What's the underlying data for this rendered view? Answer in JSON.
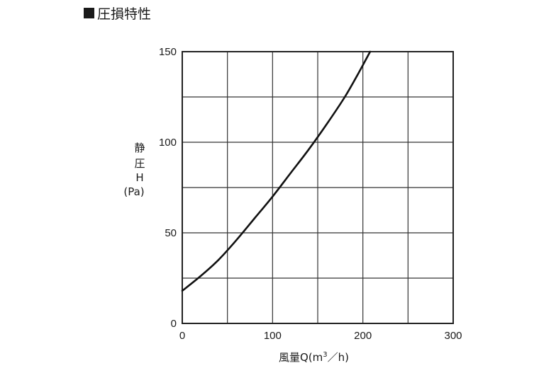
{
  "heading": {
    "square": "■",
    "text": "圧損特性"
  },
  "colors": {
    "curve": "#111111",
    "grid": "#333333",
    "frame": "#222222",
    "text": "#1a1a1a"
  },
  "chart_data": {
    "type": "line",
    "title": "圧損特性",
    "xlabel": "風量Q(m3/h)",
    "xlabel_parts": {
      "main": "風量Q(m",
      "sup": "3",
      "tail": "／h)"
    },
    "ylabel_lines": [
      "静",
      "圧",
      "H",
      "(Pa)"
    ],
    "xlim": [
      0,
      300
    ],
    "ylim": [
      0,
      150
    ],
    "x_ticks": [
      0,
      50,
      100,
      150,
      200,
      250,
      300
    ],
    "y_ticks": [
      0,
      25,
      50,
      75,
      100,
      125,
      150
    ],
    "x_tick_labels": [
      "0",
      "100",
      "200",
      "300"
    ],
    "x_tick_label_values": [
      0,
      100,
      200,
      300
    ],
    "y_tick_labels": [
      "0",
      "50",
      "100",
      "150"
    ],
    "y_tick_label_values": [
      0,
      50,
      100,
      150
    ],
    "grid": true,
    "series": [
      {
        "x": [
          0,
          20,
          40,
          60,
          80,
          100,
          120,
          140,
          160,
          180,
          195,
          208
        ],
        "y": [
          18,
          26,
          35,
          46,
          58,
          70,
          83,
          96,
          110,
          125,
          138,
          150
        ]
      }
    ]
  }
}
